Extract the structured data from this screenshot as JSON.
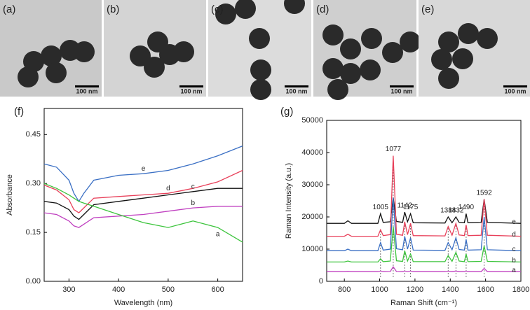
{
  "panels": [
    {
      "label": "(a)",
      "scale_bar": "100 nm"
    },
    {
      "label": "(b)",
      "scale_bar": "100 nm"
    },
    {
      "label": "(c)",
      "scale_bar": "100 nm"
    },
    {
      "label": "(d)",
      "scale_bar": "100 nm"
    },
    {
      "label": "(e)",
      "scale_bar": "100 nm"
    }
  ],
  "chart_data": [
    {
      "type": "line",
      "panel_label": "(f)",
      "x_label": "Wavelength (nm)",
      "y_label": "Absorbance",
      "x": [
        250,
        275,
        300,
        310,
        320,
        330,
        350,
        400,
        450,
        500,
        550,
        600,
        650
      ],
      "xlim": [
        250,
        650
      ],
      "xticks": [
        300,
        400,
        500,
        600
      ],
      "ylim": [
        0,
        0.53
      ],
      "yticks": [
        {
          "value": 0,
          "label": "0.00"
        },
        {
          "value": 0.15,
          "label": "0.15"
        },
        {
          "value": 0.3,
          "label": "0.30"
        },
        {
          "value": 0.45,
          "label": "0.45"
        }
      ],
      "series": [
        {
          "name": "e",
          "color": "#3a6fc4",
          "values": [
            0.36,
            0.35,
            0.31,
            0.27,
            0.245,
            0.27,
            0.31,
            0.325,
            0.33,
            0.34,
            0.36,
            0.385,
            0.415
          ]
        },
        {
          "name": "d",
          "color": "#e8405a",
          "values": [
            0.295,
            0.28,
            0.25,
            0.22,
            0.21,
            0.225,
            0.255,
            0.26,
            0.265,
            0.27,
            0.285,
            0.305,
            0.34
          ]
        },
        {
          "name": "c",
          "color": "#111111",
          "values": [
            0.245,
            0.24,
            0.22,
            0.2,
            0.19,
            0.205,
            0.235,
            0.245,
            0.255,
            0.265,
            0.275,
            0.285,
            0.285
          ]
        },
        {
          "name": "b",
          "color": "#c040c0",
          "values": [
            0.21,
            0.205,
            0.185,
            0.17,
            0.165,
            0.175,
            0.195,
            0.2,
            0.205,
            0.215,
            0.225,
            0.23,
            0.23
          ]
        },
        {
          "name": "a",
          "color": "#3cc43c",
          "values": [
            0.3,
            0.285,
            0.265,
            0.255,
            0.245,
            0.24,
            0.23,
            0.205,
            0.18,
            0.165,
            0.185,
            0.165,
            0.12
          ]
        }
      ]
    },
    {
      "type": "line",
      "panel_label": "(g)",
      "x_label": "Raman Shift (cm⁻¹)",
      "y_label": "Raman Intensity (a.u.)",
      "x": [
        700,
        800,
        820,
        840,
        990,
        1005,
        1020,
        1060,
        1077,
        1095,
        1130,
        1142,
        1158,
        1175,
        1190,
        1370,
        1388,
        1410,
        1432,
        1450,
        1480,
        1490,
        1500,
        1575,
        1592,
        1610,
        1800
      ],
      "xlim": [
        700,
        1800
      ],
      "xticks": [
        800,
        1000,
        1200,
        1400,
        1600,
        1800
      ],
      "ylim": [
        0,
        50000
      ],
      "yticks": [
        0,
        10000,
        20000,
        30000,
        40000,
        50000
      ],
      "peaks": [
        1005,
        1077,
        1142,
        1175,
        1388,
        1432,
        1490,
        1592
      ],
      "series": [
        {
          "name": "e",
          "color": "#111111",
          "values": [
            18000,
            18000,
            18800,
            18000,
            18000,
            21000,
            18300,
            18500,
            26000,
            18600,
            18300,
            21500,
            18500,
            21000,
            18200,
            18100,
            20000,
            18200,
            20000,
            18300,
            18200,
            21000,
            18200,
            18300,
            25500,
            18300,
            18000
          ]
        },
        {
          "name": "d",
          "color": "#e8405a",
          "values": [
            14000,
            14000,
            14600,
            14000,
            14000,
            16000,
            14200,
            14500,
            39000,
            14600,
            14300,
            18500,
            14500,
            18000,
            14200,
            14100,
            17000,
            14300,
            18000,
            14400,
            14200,
            17500,
            14200,
            14300,
            25500,
            14300,
            14000
          ]
        },
        {
          "name": "c",
          "color": "#3a6fc4",
          "values": [
            9500,
            9500,
            10000,
            9500,
            9500,
            12000,
            9700,
            10000,
            26000,
            10100,
            9800,
            14000,
            10000,
            13500,
            9700,
            9600,
            12000,
            9800,
            13500,
            9900,
            9700,
            13000,
            9700,
            9800,
            20000,
            9800,
            9500
          ]
        },
        {
          "name": "b",
          "color": "#3cc43c",
          "values": [
            6000,
            6000,
            6300,
            6000,
            6000,
            7000,
            6100,
            6300,
            17000,
            6400,
            6200,
            9500,
            6300,
            8500,
            6100,
            6100,
            8000,
            6200,
            9000,
            6300,
            6100,
            8500,
            6100,
            6200,
            11000,
            6200,
            6000
          ]
        },
        {
          "name": "a",
          "color": "#c040c0",
          "values": [
            3000,
            3000,
            3100,
            3000,
            3000,
            3200,
            3000,
            3050,
            4500,
            3050,
            3000,
            3200,
            3000,
            3200,
            3000,
            3000,
            3150,
            3000,
            3200,
            3000,
            3000,
            3200,
            3000,
            3000,
            4000,
            3000,
            3000
          ]
        }
      ]
    }
  ]
}
